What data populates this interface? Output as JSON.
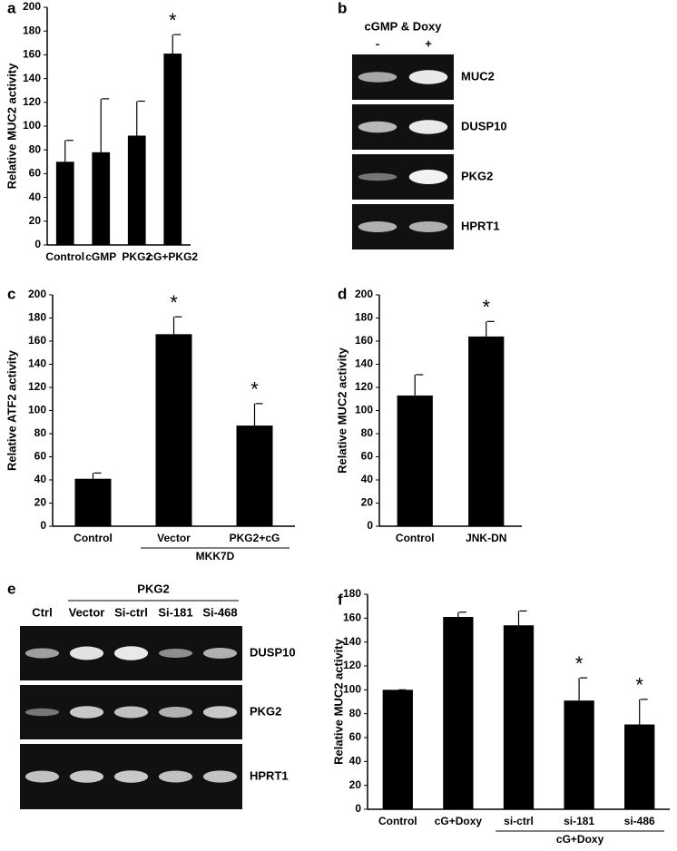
{
  "chart_data": [
    {
      "type": "bar",
      "label": "a",
      "ylabel": "Relative MUC2  activity",
      "categories": [
        "Control",
        "cGMP",
        "PKG2",
        "cG+PKG2"
      ],
      "values": [
        70,
        78,
        92,
        161
      ],
      "errors": [
        18,
        45,
        29,
        16
      ],
      "annotations": [
        null,
        null,
        null,
        "*"
      ],
      "color": "#000000",
      "ylim": [
        0,
        200
      ],
      "yticks": [
        0,
        20,
        40,
        60,
        80,
        100,
        120,
        140,
        160,
        180,
        200
      ]
    },
    {
      "type": "bar",
      "label": "c",
      "ylabel": "Relative ATF2 activity",
      "categories": [
        "Control",
        "Vector",
        "PKG2+cG"
      ],
      "values": [
        41,
        166,
        87
      ],
      "errors": [
        5,
        15,
        19
      ],
      "annotations": [
        null,
        "*",
        "*"
      ],
      "groups": [
        null,
        "MKK7D",
        "MKK7D"
      ],
      "color": "#000000",
      "ylim": [
        0,
        200
      ],
      "yticks": [
        0,
        20,
        40,
        60,
        80,
        100,
        120,
        140,
        160,
        180,
        200
      ]
    },
    {
      "type": "bar",
      "label": "d",
      "ylabel": "Relative MUC2 activity",
      "categories": [
        "Control",
        "JNK-DN"
      ],
      "values": [
        113,
        164
      ],
      "errors": [
        18,
        13
      ],
      "annotations": [
        null,
        "*"
      ],
      "color": "#000000",
      "ylim": [
        0,
        200
      ],
      "yticks": [
        0,
        20,
        40,
        60,
        80,
        100,
        120,
        140,
        160,
        180,
        200
      ]
    },
    {
      "type": "bar",
      "label": "f",
      "ylabel": "Relative MUC2 activity",
      "categories": [
        "Control",
        "cG+Doxy",
        "si-ctrl",
        "si-181",
        "si-486"
      ],
      "values": [
        100,
        161,
        154,
        91,
        71
      ],
      "errors": [
        0,
        4,
        12,
        19,
        21
      ],
      "annotations": [
        null,
        null,
        null,
        "*",
        "*"
      ],
      "groups": [
        null,
        null,
        "cG+Doxy",
        "cG+Doxy",
        "cG+Doxy"
      ],
      "color": "#000000",
      "ylim": [
        0,
        180
      ],
      "yticks": [
        0,
        20,
        40,
        60,
        80,
        100,
        120,
        140,
        160,
        180
      ]
    }
  ],
  "gels": [
    {
      "label": "b",
      "header": "cGMP & Doxy",
      "lanes": [
        "-",
        "+"
      ],
      "rows": [
        "MUC2",
        "DUSP10",
        "PKG2",
        "HPRT1"
      ]
    },
    {
      "label": "e",
      "header": "PKG2",
      "lanes": [
        "Ctrl",
        "Vector",
        "Si-ctrl",
        "Si-181",
        "Si-468"
      ],
      "rows": [
        "DUSP10",
        "PKG2",
        "HPRT1"
      ]
    }
  ]
}
